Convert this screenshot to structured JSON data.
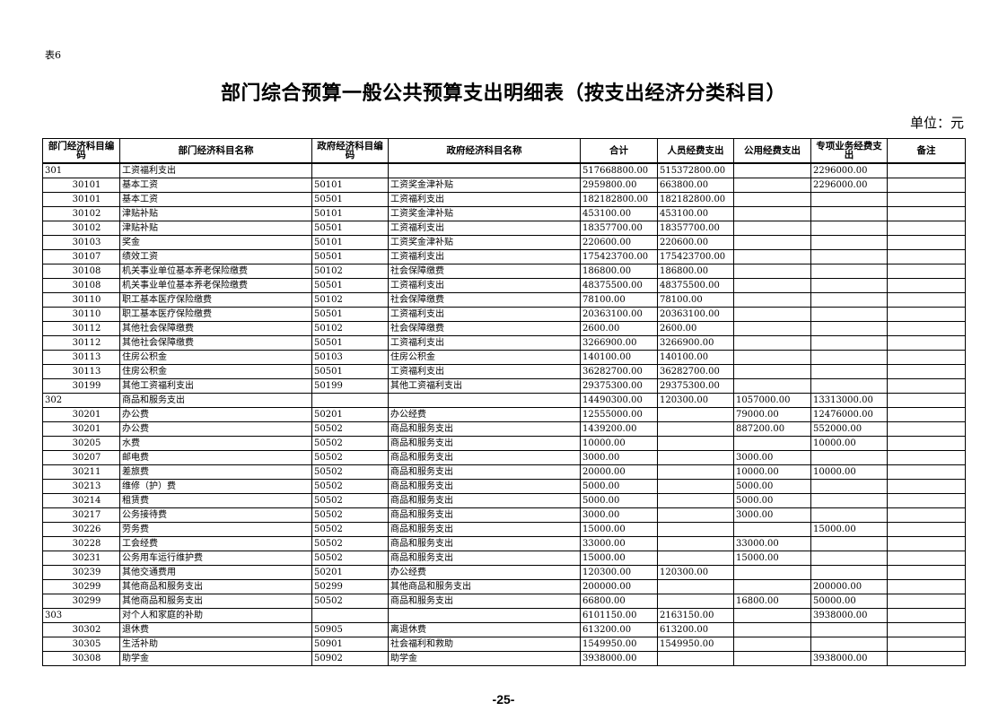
{
  "table_label": "表6",
  "title": "部门综合预算一般公共预算支出明细表（按支出经济分类科目）",
  "unit": "单位：元",
  "page_number": "-25-",
  "columns": [
    "部门经济科目编码",
    "部门经济科目名称",
    "政府经济科目编码",
    "政府经济科目名称",
    "合计",
    "人员经费支出",
    "公用经费支出",
    "专项业务经费支出",
    "备注"
  ],
  "rows": [
    {
      "level": "group",
      "cells": [
        "301",
        "工资福利支出",
        "",
        "",
        "517668800.00",
        "515372800.00",
        "",
        "2296000.00",
        ""
      ]
    },
    {
      "level": "item",
      "cells": [
        "30101",
        "基本工资",
        "50101",
        "工资奖金津补贴",
        "2959800.00",
        "663800.00",
        "",
        "2296000.00",
        ""
      ]
    },
    {
      "level": "item",
      "cells": [
        "30101",
        "基本工资",
        "50501",
        "工资福利支出",
        "182182800.00",
        "182182800.00",
        "",
        "",
        ""
      ]
    },
    {
      "level": "item",
      "cells": [
        "30102",
        "津贴补贴",
        "50101",
        "工资奖金津补贴",
        "453100.00",
        "453100.00",
        "",
        "",
        ""
      ]
    },
    {
      "level": "item",
      "cells": [
        "30102",
        "津贴补贴",
        "50501",
        "工资福利支出",
        "18357700.00",
        "18357700.00",
        "",
        "",
        ""
      ]
    },
    {
      "level": "item",
      "cells": [
        "30103",
        "奖金",
        "50101",
        "工资奖金津补贴",
        "220600.00",
        "220600.00",
        "",
        "",
        ""
      ]
    },
    {
      "level": "item",
      "cells": [
        "30107",
        "绩效工资",
        "50501",
        "工资福利支出",
        "175423700.00",
        "175423700.00",
        "",
        "",
        ""
      ]
    },
    {
      "level": "item",
      "cells": [
        "30108",
        "机关事业单位基本养老保险缴费",
        "50102",
        "社会保障缴费",
        "186800.00",
        "186800.00",
        "",
        "",
        ""
      ]
    },
    {
      "level": "item",
      "cells": [
        "30108",
        "机关事业单位基本养老保险缴费",
        "50501",
        "工资福利支出",
        "48375500.00",
        "48375500.00",
        "",
        "",
        ""
      ]
    },
    {
      "level": "item",
      "cells": [
        "30110",
        "职工基本医疗保险缴费",
        "50102",
        "社会保障缴费",
        "78100.00",
        "78100.00",
        "",
        "",
        ""
      ]
    },
    {
      "level": "item",
      "cells": [
        "30110",
        "职工基本医疗保险缴费",
        "50501",
        "工资福利支出",
        "20363100.00",
        "20363100.00",
        "",
        "",
        ""
      ]
    },
    {
      "level": "item",
      "cells": [
        "30112",
        "其他社会保障缴费",
        "50102",
        "社会保障缴费",
        "2600.00",
        "2600.00",
        "",
        "",
        ""
      ]
    },
    {
      "level": "item",
      "cells": [
        "30112",
        "其他社会保障缴费",
        "50501",
        "工资福利支出",
        "3266900.00",
        "3266900.00",
        "",
        "",
        ""
      ]
    },
    {
      "level": "item",
      "cells": [
        "30113",
        "住房公积金",
        "50103",
        "住房公积金",
        "140100.00",
        "140100.00",
        "",
        "",
        ""
      ]
    },
    {
      "level": "item",
      "cells": [
        "30113",
        "住房公积金",
        "50501",
        "工资福利支出",
        "36282700.00",
        "36282700.00",
        "",
        "",
        ""
      ]
    },
    {
      "level": "item",
      "cells": [
        "30199",
        "其他工资福利支出",
        "50199",
        "其他工资福利支出",
        "29375300.00",
        "29375300.00",
        "",
        "",
        ""
      ]
    },
    {
      "level": "group",
      "cells": [
        "302",
        "商品和服务支出",
        "",
        "",
        "14490300.00",
        "120300.00",
        "1057000.00",
        "13313000.00",
        ""
      ]
    },
    {
      "level": "item",
      "cells": [
        "30201",
        "办公费",
        "50201",
        "办公经费",
        "12555000.00",
        "",
        "79000.00",
        "12476000.00",
        ""
      ]
    },
    {
      "level": "item",
      "cells": [
        "30201",
        "办公费",
        "50502",
        "商品和服务支出",
        "1439200.00",
        "",
        "887200.00",
        "552000.00",
        ""
      ]
    },
    {
      "level": "item",
      "cells": [
        "30205",
        "水费",
        "50502",
        "商品和服务支出",
        "10000.00",
        "",
        "",
        "10000.00",
        ""
      ]
    },
    {
      "level": "item",
      "cells": [
        "30207",
        "邮电费",
        "50502",
        "商品和服务支出",
        "3000.00",
        "",
        "3000.00",
        "",
        ""
      ]
    },
    {
      "level": "item",
      "cells": [
        "30211",
        "差旅费",
        "50502",
        "商品和服务支出",
        "20000.00",
        "",
        "10000.00",
        "10000.00",
        ""
      ]
    },
    {
      "level": "item",
      "cells": [
        "30213",
        "维修（护）费",
        "50502",
        "商品和服务支出",
        "5000.00",
        "",
        "5000.00",
        "",
        ""
      ]
    },
    {
      "level": "item",
      "cells": [
        "30214",
        "租赁费",
        "50502",
        "商品和服务支出",
        "5000.00",
        "",
        "5000.00",
        "",
        ""
      ]
    },
    {
      "level": "item",
      "cells": [
        "30217",
        "公务接待费",
        "50502",
        "商品和服务支出",
        "3000.00",
        "",
        "3000.00",
        "",
        ""
      ]
    },
    {
      "level": "item",
      "cells": [
        "30226",
        "劳务费",
        "50502",
        "商品和服务支出",
        "15000.00",
        "",
        "",
        "15000.00",
        ""
      ]
    },
    {
      "level": "item",
      "cells": [
        "30228",
        "工会经费",
        "50502",
        "商品和服务支出",
        "33000.00",
        "",
        "33000.00",
        "",
        ""
      ]
    },
    {
      "level": "item",
      "cells": [
        "30231",
        "公务用车运行维护费",
        "50502",
        "商品和服务支出",
        "15000.00",
        "",
        "15000.00",
        "",
        ""
      ]
    },
    {
      "level": "item",
      "cells": [
        "30239",
        "其他交通费用",
        "50201",
        "办公经费",
        "120300.00",
        "120300.00",
        "",
        "",
        ""
      ]
    },
    {
      "level": "item",
      "cells": [
        "30299",
        "其他商品和服务支出",
        "50299",
        "其他商品和服务支出",
        "200000.00",
        "",
        "",
        "200000.00",
        ""
      ]
    },
    {
      "level": "item",
      "cells": [
        "30299",
        "其他商品和服务支出",
        "50502",
        "商品和服务支出",
        "66800.00",
        "",
        "16800.00",
        "50000.00",
        ""
      ]
    },
    {
      "level": "group",
      "cells": [
        "303",
        "对个人和家庭的补助",
        "",
        "",
        "6101150.00",
        "2163150.00",
        "",
        "3938000.00",
        ""
      ]
    },
    {
      "level": "item",
      "cells": [
        "30302",
        "退休费",
        "50905",
        "离退休费",
        "613200.00",
        "613200.00",
        "",
        "",
        ""
      ]
    },
    {
      "level": "item",
      "cells": [
        "30305",
        "生活补助",
        "50901",
        "社会福利和救助",
        "1549950.00",
        "1549950.00",
        "",
        "",
        ""
      ]
    },
    {
      "level": "item",
      "cells": [
        "30308",
        "助学金",
        "50902",
        "助学金",
        "3938000.00",
        "",
        "",
        "3938000.00",
        ""
      ]
    }
  ]
}
